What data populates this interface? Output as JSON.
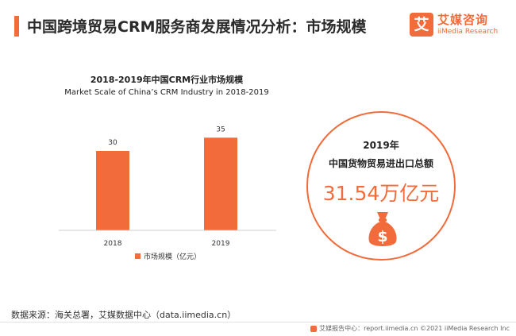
{
  "header": {
    "title": "中国跨境贸易CRM服务商发展情况分析：市场规模",
    "brand_mark": "艾",
    "brand_cn": "艾媒咨询",
    "brand_en": "iiMedia Research",
    "accent_color": "#f26b3a"
  },
  "chart_data": {
    "type": "bar",
    "title": "2018-2019年中国CRM行业市场规模",
    "subtitle": "Market Scale of China’s CRM Industry in 2018-2019",
    "categories": [
      "2018",
      "2019"
    ],
    "series": [
      {
        "name": "市场规模（亿元）",
        "values": [
          30,
          35
        ],
        "color": "#f26b3a"
      }
    ],
    "ylim": [
      0,
      45
    ],
    "grid": false,
    "legend": "bottom"
  },
  "highlight": {
    "year": "2019年",
    "label": "中国货物贸易进出口总额",
    "value": "31.54万亿元",
    "icon": "money-bag-icon"
  },
  "source": "数据来源：海关总署，艾媒数据中心（data.iimedia.cn）",
  "footer": {
    "text": "艾媒报告中心：report.iimedia.cn ©2021 iiMedia Research Inc"
  }
}
